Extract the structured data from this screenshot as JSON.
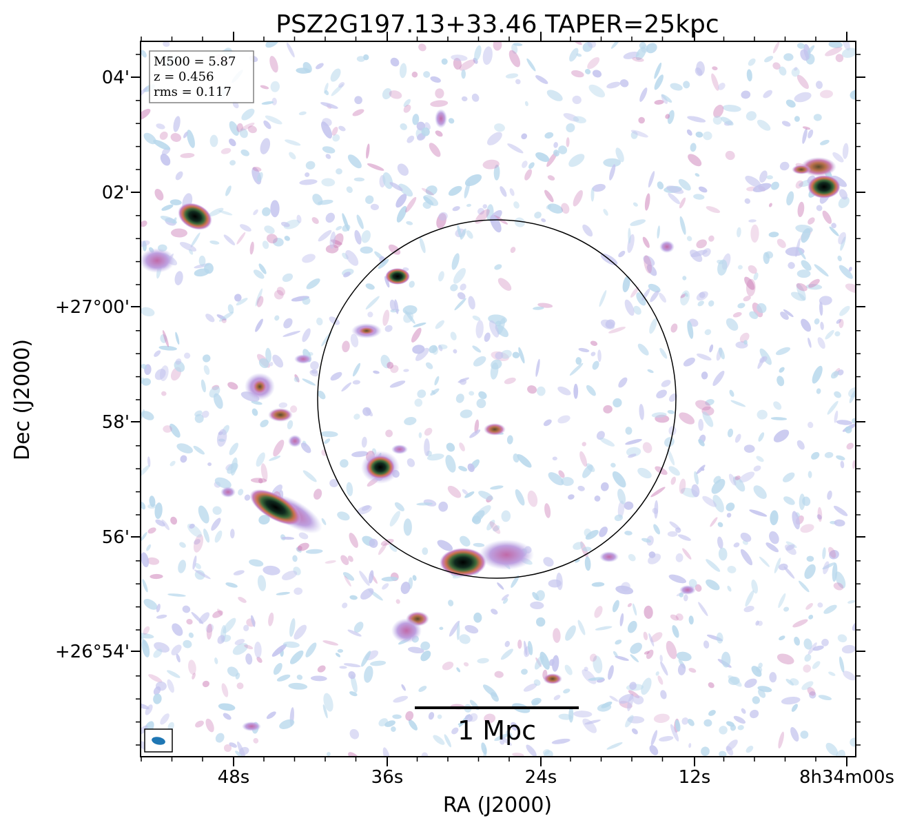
{
  "title": "PSZ2G197.13+33.46 TAPER=25kpc",
  "xlabel": "RA (J2000)",
  "ylabel": "Dec (J2000)",
  "x_ticks": [
    "48s",
    "36s",
    "24s",
    "12s",
    "8h34m00s"
  ],
  "y_ticks": [
    "04'",
    "02'",
    "+27°00'",
    "58'",
    "56'",
    "+26°54'"
  ],
  "info_box": {
    "mass": "M500 = 5.87",
    "redshift": "z = 0.456",
    "rms": "rms = 0.117"
  },
  "scale_bar_label": "1 Mpc",
  "colors": {
    "noise_light": "#b8d8ec",
    "noise_lavender": "#c4c4ee",
    "mid_pink": "#cc7fb8",
    "bright_orange": "#c8704a",
    "core_green": "#2a4a30",
    "core_black": "#000000",
    "beam_fill": "#1f77b4"
  }
}
